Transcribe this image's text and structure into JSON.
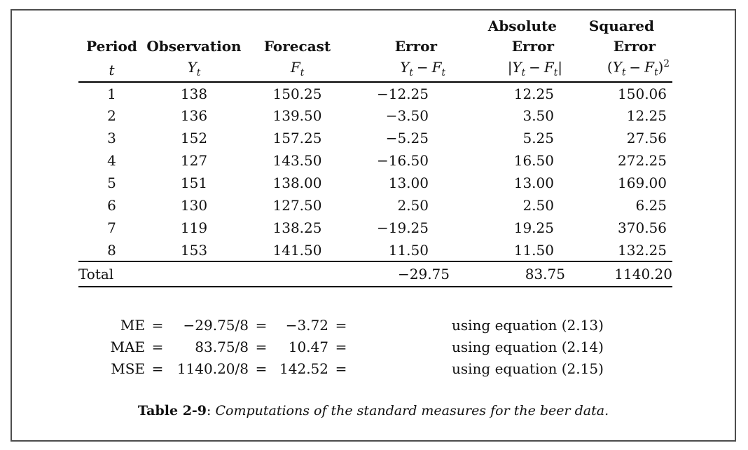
{
  "colors": {
    "background": "#ffffff",
    "frame_border": "#4d4d4d",
    "text": "#111111",
    "rule": "#000000"
  },
  "table": {
    "header_top": {
      "absolute": "Absolute",
      "squared": "Squared"
    },
    "header_main": [
      "Period",
      "Observation",
      "Forecast",
      "Error",
      "Error",
      "Error"
    ],
    "math": {
      "t": "t",
      "Y": "Y",
      "F": "F",
      "minus": "−",
      "bar": "|",
      "lparen": "(",
      "rparen": ")",
      "sup2": "2"
    },
    "rows": [
      [
        "1",
        "138",
        "150.25",
        "−12.25",
        "12.25",
        "150.06"
      ],
      [
        "2",
        "136",
        "139.50",
        "−3.50",
        "3.50",
        "12.25"
      ],
      [
        "3",
        "152",
        "157.25",
        "−5.25",
        "5.25",
        "27.56"
      ],
      [
        "4",
        "127",
        "143.50",
        "−16.50",
        "16.50",
        "272.25"
      ],
      [
        "5",
        "151",
        "138.00",
        "13.00",
        "13.00",
        "169.00"
      ],
      [
        "6",
        "130",
        "127.50",
        "2.50",
        "2.50",
        "6.25"
      ],
      [
        "7",
        "119",
        "138.25",
        "−19.25",
        "19.25",
        "370.56"
      ],
      [
        "8",
        "153",
        "141.50",
        "11.50",
        "11.50",
        "132.25"
      ]
    ],
    "total": {
      "label": "Total",
      "error": "−29.75",
      "abs_error": "83.75",
      "sq_error": "1140.20"
    }
  },
  "equations": {
    "equals": "=",
    "items": [
      {
        "label": "ME",
        "fraction": "−29.75/8",
        "result": "−3.72",
        "note": "using equation (2.13)"
      },
      {
        "label": "MAE",
        "fraction": "83.75/8",
        "result": "10.47",
        "note": "using equation (2.14)"
      },
      {
        "label": "MSE",
        "fraction": "1140.20/8",
        "result": "142.52",
        "note": "using equation (2.15)"
      }
    ]
  },
  "caption": {
    "label": "Table 2-9",
    "separator": ": ",
    "text": "Computations of the standard measures for the beer data."
  }
}
